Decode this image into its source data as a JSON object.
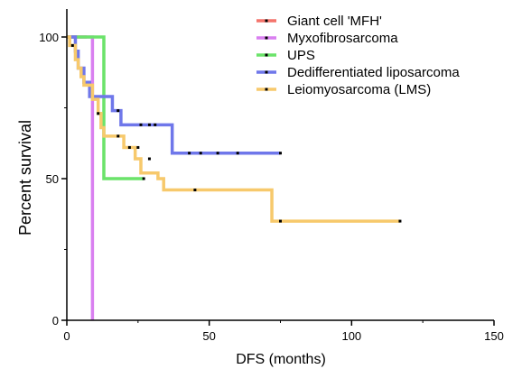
{
  "chart_data": {
    "type": "line",
    "subtype": "kaplan-meier step",
    "xlabel": "DFS (months)",
    "ylabel": "Percent survival",
    "xlim": [
      0,
      150
    ],
    "ylim": [
      0,
      100
    ],
    "x_ticks": [
      "0",
      "50",
      "100",
      "150"
    ],
    "y_ticks": [
      "0",
      "50",
      "100"
    ],
    "grid": false,
    "legend_position": "top-right",
    "series": [
      {
        "name": "Giant cell 'MFH'",
        "color": "#f4736b",
        "steps": [
          [
            0,
            100
          ],
          [
            7,
            100
          ]
        ],
        "censors": [
          [
            1,
            100
          ],
          [
            5,
            100
          ],
          [
            7,
            100
          ]
        ]
      },
      {
        "name": "Myxofibrosarcoma",
        "color": "#d97ff0",
        "steps": [
          [
            0,
            100
          ],
          [
            9,
            100
          ],
          [
            9,
            0
          ]
        ],
        "censors": []
      },
      {
        "name": "UPS",
        "color": "#6be36a",
        "steps": [
          [
            0,
            100
          ],
          [
            13,
            100
          ],
          [
            13,
            50
          ],
          [
            27,
            50
          ]
        ],
        "censors": [
          [
            27,
            50
          ]
        ]
      },
      {
        "name": "Dedifferentiated liposarcoma",
        "color": "#6f77ea",
        "steps": [
          [
            0,
            100
          ],
          [
            3,
            100
          ],
          [
            3,
            95
          ],
          [
            4,
            95
          ],
          [
            4,
            89
          ],
          [
            6,
            89
          ],
          [
            6,
            84
          ],
          [
            8,
            84
          ],
          [
            8,
            79
          ],
          [
            16,
            79
          ],
          [
            16,
            74
          ],
          [
            19,
            74
          ],
          [
            19,
            69
          ],
          [
            37,
            69
          ],
          [
            37,
            59
          ],
          [
            75,
            59
          ]
        ],
        "censors": [
          [
            18,
            74
          ],
          [
            26,
            69
          ],
          [
            29,
            69
          ],
          [
            31,
            69
          ],
          [
            43,
            59
          ],
          [
            47,
            59
          ],
          [
            53,
            59
          ],
          [
            60,
            59
          ],
          [
            75,
            59
          ]
        ]
      },
      {
        "name": "Leiomyosarcoma (LMS)",
        "color": "#f7c96c",
        "steps": [
          [
            0,
            100
          ],
          [
            1,
            100
          ],
          [
            1,
            97
          ],
          [
            3,
            97
          ],
          [
            3,
            92
          ],
          [
            4,
            92
          ],
          [
            4,
            89
          ],
          [
            5,
            89
          ],
          [
            5,
            86
          ],
          [
            6,
            86
          ],
          [
            6,
            83
          ],
          [
            9,
            83
          ],
          [
            9,
            78
          ],
          [
            11,
            78
          ],
          [
            11,
            73
          ],
          [
            12,
            73
          ],
          [
            12,
            68
          ],
          [
            13,
            68
          ],
          [
            13,
            65
          ],
          [
            20,
            65
          ],
          [
            20,
            61
          ],
          [
            24,
            61
          ],
          [
            24,
            57
          ],
          [
            26,
            57
          ],
          [
            26,
            52
          ],
          [
            32,
            52
          ],
          [
            32,
            50
          ],
          [
            34,
            50
          ],
          [
            34,
            46
          ],
          [
            72,
            46
          ],
          [
            72,
            35
          ],
          [
            117,
            35
          ]
        ],
        "censors": [
          [
            2,
            97
          ],
          [
            11,
            73
          ],
          [
            18,
            65
          ],
          [
            22,
            61
          ],
          [
            25,
            61
          ],
          [
            29,
            57
          ],
          [
            45,
            46
          ],
          [
            75,
            35
          ],
          [
            117,
            35
          ]
        ]
      }
    ]
  }
}
